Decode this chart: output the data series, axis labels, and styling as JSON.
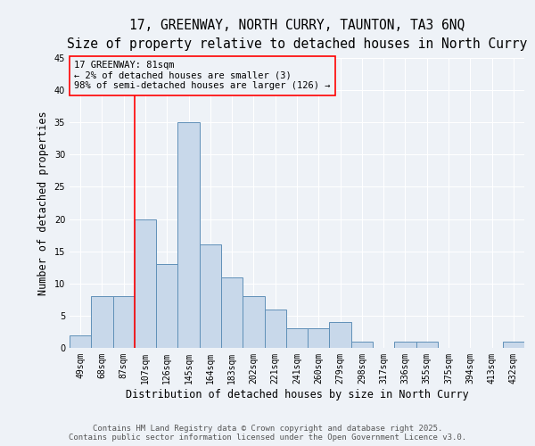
{
  "title_line1": "17, GREENWAY, NORTH CURRY, TAUNTON, TA3 6NQ",
  "title_line2": "Size of property relative to detached houses in North Curry",
  "xlabel": "Distribution of detached houses by size in North Curry",
  "ylabel": "Number of detached properties",
  "categories": [
    "49sqm",
    "68sqm",
    "87sqm",
    "107sqm",
    "126sqm",
    "145sqm",
    "164sqm",
    "183sqm",
    "202sqm",
    "221sqm",
    "241sqm",
    "260sqm",
    "279sqm",
    "298sqm",
    "317sqm",
    "336sqm",
    "355sqm",
    "375sqm",
    "394sqm",
    "413sqm",
    "432sqm"
  ],
  "values": [
    2,
    8,
    8,
    20,
    13,
    35,
    16,
    11,
    8,
    6,
    3,
    3,
    4,
    1,
    0,
    1,
    1,
    0,
    0,
    0,
    1
  ],
  "bar_color": "#c8d8ea",
  "bar_edge_color": "#6090b8",
  "annotation_line1": "17 GREENWAY: 81sqm",
  "annotation_line2": "← 2% of detached houses are smaller (3)",
  "annotation_line3": "98% of semi-detached houses are larger (126) →",
  "red_line_x": 2.5,
  "ylim": [
    0,
    45
  ],
  "yticks": [
    0,
    5,
    10,
    15,
    20,
    25,
    30,
    35,
    40,
    45
  ],
  "footer_text": "Contains HM Land Registry data © Crown copyright and database right 2025.\nContains public sector information licensed under the Open Government Licence v3.0.",
  "background_color": "#eef2f7",
  "grid_color": "#ffffff",
  "title_fontsize": 10.5,
  "subtitle_fontsize": 9.5,
  "axis_label_fontsize": 8.5,
  "tick_fontsize": 7,
  "annotation_fontsize": 7.5,
  "footer_fontsize": 6.5
}
